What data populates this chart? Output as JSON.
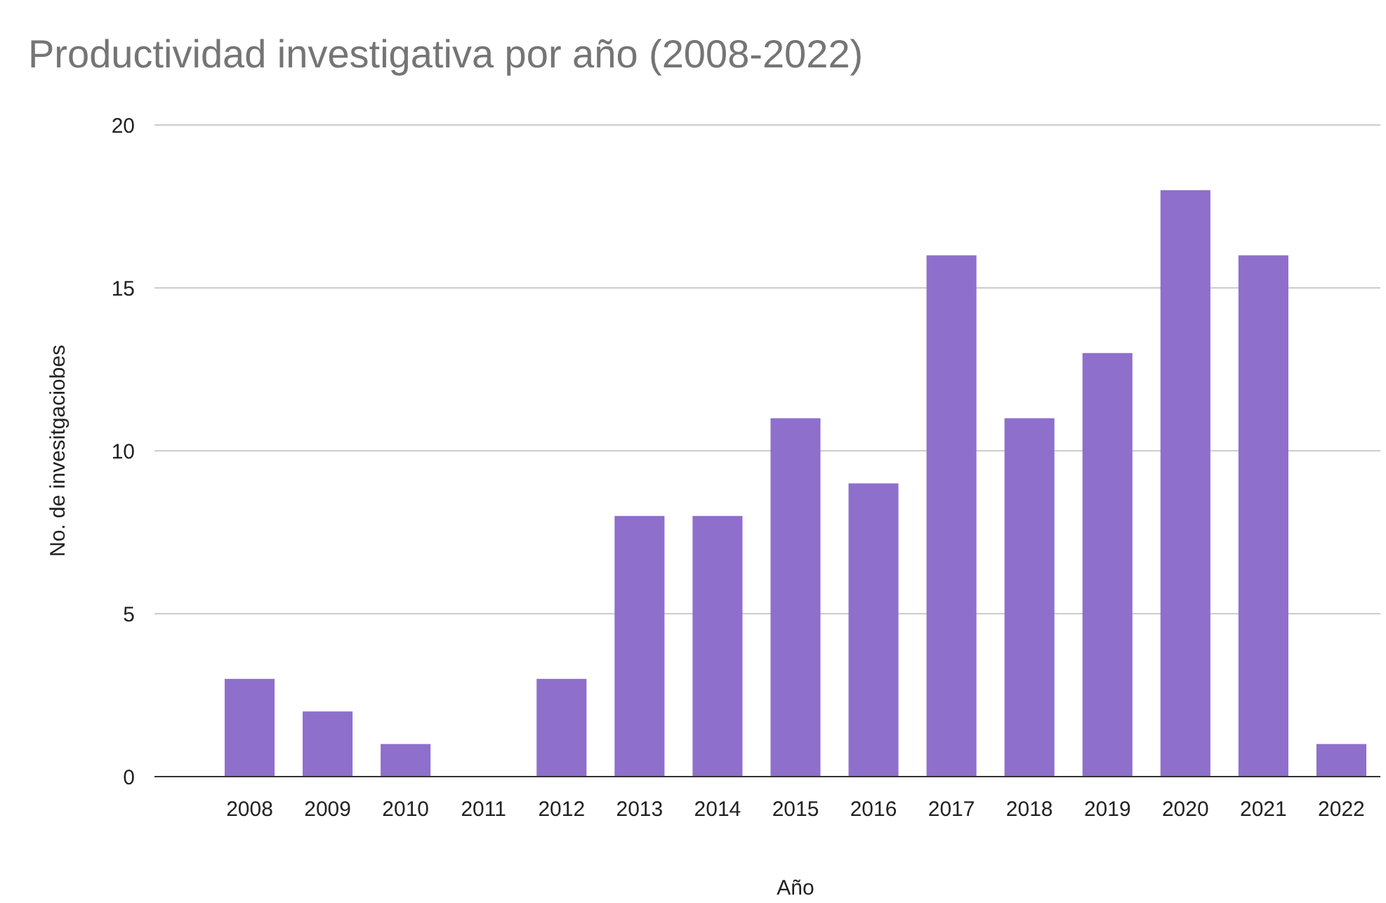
{
  "chart_data": {
    "type": "bar",
    "title": "Productividad investigativa por año (2008-2022)",
    "xlabel": "Año",
    "ylabel": "No. de invesitgaciobes",
    "categories": [
      "2008",
      "2009",
      "2010",
      "2011",
      "2012",
      "2013",
      "2014",
      "2015",
      "2016",
      "2017",
      "2018",
      "2019",
      "2020",
      "2021",
      "2022"
    ],
    "values": [
      3,
      2,
      1,
      0,
      3,
      8,
      8,
      11,
      9,
      16,
      11,
      13,
      18,
      16,
      1
    ],
    "color": "#8e6fcc",
    "ylim": [
      0,
      20
    ],
    "yticks": [
      0,
      5,
      10,
      15,
      20
    ],
    "grid": "y"
  }
}
